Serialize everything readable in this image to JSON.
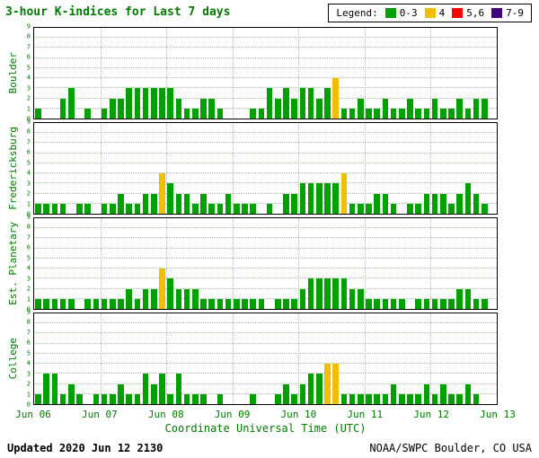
{
  "header": {
    "title": "3-hour K-indices for Last 7 days",
    "legend_label": "Legend:",
    "legend": [
      {
        "label": "0-3",
        "color": "#00a000"
      },
      {
        "label": "4",
        "color": "#f0c000"
      },
      {
        "label": "5,6",
        "color": "#ff0000"
      },
      {
        "label": "7-9",
        "color": "#400080"
      }
    ]
  },
  "footer": {
    "updated_label": "Updated",
    "updated_value": "2020 Jun 12 2130",
    "credit": "NOAA/SWPC Boulder, CO USA"
  },
  "chart_data": {
    "type": "bar",
    "title": "3-hour K-indices for Last 7 days",
    "xlabel": "Coordinate Universal Time (UTC)",
    "x_tick_labels": [
      "Jun 06",
      "Jun 07",
      "Jun 08",
      "Jun 09",
      "Jun 10",
      "Jun 11",
      "Jun 12",
      "Jun 13"
    ],
    "ylim": [
      0,
      9
    ],
    "y_ticks": [
      0,
      1,
      2,
      3,
      4,
      5,
      6,
      7,
      8,
      9
    ],
    "bins_per_day": 8,
    "bin_hours": 3,
    "grid": true,
    "legend_position": "top-right",
    "color_scale": {
      "0-3": "#00a000",
      "4": "#f0c000",
      "5,6": "#ff0000",
      "7-9": "#400080"
    },
    "series": [
      {
        "name": "Boulder",
        "values": [
          1,
          0,
          0,
          2,
          3,
          0,
          1,
          0,
          1,
          2,
          2,
          3,
          3,
          3,
          3,
          3,
          3,
          2,
          1,
          1,
          2,
          2,
          1,
          0,
          0,
          0,
          1,
          1,
          3,
          2,
          3,
          2,
          3,
          3,
          2,
          3,
          4,
          1,
          1,
          2,
          1,
          1,
          2,
          1,
          1,
          2,
          1,
          1,
          2,
          1,
          1,
          2,
          1,
          2,
          2
        ]
      },
      {
        "name": "Fredericksburg",
        "values": [
          1,
          1,
          1,
          1,
          0,
          1,
          1,
          0,
          1,
          1,
          2,
          1,
          1,
          2,
          2,
          4,
          3,
          2,
          2,
          1,
          2,
          1,
          1,
          2,
          1,
          1,
          1,
          0,
          1,
          0,
          2,
          2,
          3,
          3,
          3,
          3,
          3,
          4,
          1,
          1,
          1,
          2,
          2,
          1,
          0,
          1,
          1,
          2,
          2,
          2,
          1,
          2,
          3,
          2,
          1
        ]
      },
      {
        "name": "Est. Planetary",
        "values": [
          1,
          1,
          1,
          1,
          1,
          0,
          1,
          1,
          1,
          1,
          1,
          2,
          1,
          2,
          2,
          4,
          3,
          2,
          2,
          2,
          1,
          1,
          1,
          1,
          1,
          1,
          1,
          1,
          0,
          1,
          1,
          1,
          2,
          3,
          3,
          3,
          3,
          3,
          2,
          2,
          1,
          1,
          1,
          1,
          1,
          0,
          1,
          1,
          1,
          1,
          1,
          2,
          2,
          1,
          1
        ]
      },
      {
        "name": "College",
        "values": [
          1,
          3,
          3,
          1,
          2,
          1,
          0,
          1,
          1,
          1,
          2,
          1,
          1,
          3,
          2,
          3,
          1,
          3,
          1,
          1,
          1,
          0,
          1,
          0,
          0,
          0,
          1,
          0,
          0,
          1,
          2,
          1,
          2,
          3,
          3,
          4,
          4,
          1,
          1,
          1,
          1,
          1,
          1,
          2,
          1,
          1,
          1,
          2,
          1,
          2,
          1,
          1,
          2,
          1,
          0
        ]
      }
    ]
  }
}
